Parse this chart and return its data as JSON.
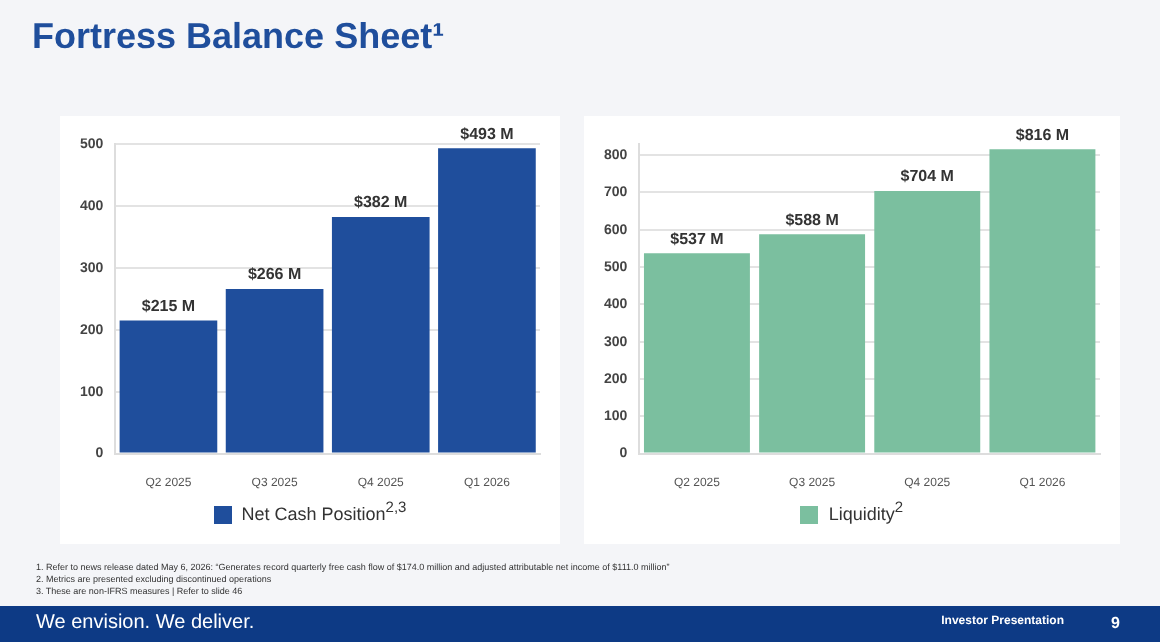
{
  "chart_data": [
    {
      "type": "bar",
      "title": "Fortress Balance Sheet¹",
      "categories": [
        "Q2 2025",
        "Q3 2025",
        "Q4 2025",
        "Q1 2026"
      ],
      "series": [
        {
          "name": "Net Cash Position$^{2,3}$",
          "color": "#1f4e9c",
          "values": [
            215,
            266,
            382,
            493
          ],
          "value_labels": [
            "$215 M",
            "$266 M",
            "$382 M",
            "$493 M"
          ]
        }
      ],
      "ylim": [
        0,
        500
      ],
      "yticks": [
        0,
        100,
        200,
        300,
        400,
        500
      ],
      "grid": "y",
      "legend": "bottom",
      "annotations": [
        "1. Refer to news release dated May 6, 2026: “Generates record quarterly free cash flow of $174.0 million and adjusted attributable net income of $111.0 million”",
        "2. Metrics are presented excluding discontinued operations",
        "3. These are non-IFRS measures | Refer to slide 46",
        "We envision. We deliver.",
        "Investor Presentation",
        "9"
      ]
    },
    {
      "type": "bar",
      "categories": [
        "Q2 2025",
        "Q3 2025",
        "Q4 2025",
        "Q1 2026"
      ],
      "series": [
        {
          "name": "Liquidity$^{2}$",
          "color": "#7bbf9f",
          "values": [
            537,
            588,
            704,
            816
          ],
          "value_labels": [
            "$537 M",
            "$588 M",
            "$704 M",
            "$816 M"
          ]
        }
      ],
      "ylim": [
        0,
        830
      ],
      "yticks": [
        0,
        100,
        200,
        300,
        400,
        500,
        600,
        700,
        800
      ],
      "grid": "y",
      "legend": "bottom"
    }
  ]
}
